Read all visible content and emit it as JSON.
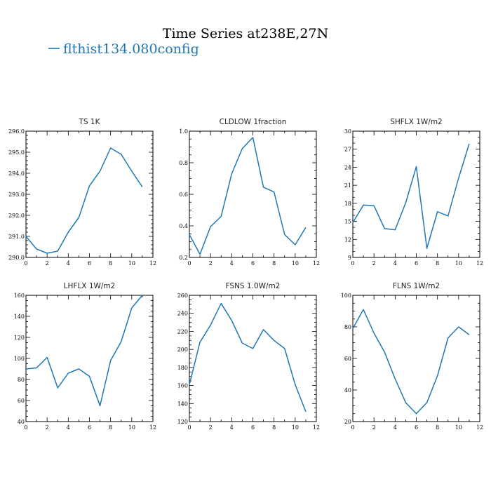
{
  "figure": {
    "title": "Time Series at238E,27N",
    "legend_label": "flthist134.080config",
    "series_color": "#1f77b4"
  },
  "chart_data": [
    {
      "type": "line",
      "title": "TS   1K",
      "x": [
        0,
        1,
        2,
        3,
        4,
        5,
        6,
        7,
        8,
        9,
        10,
        11
      ],
      "series": [
        {
          "values": [
            291.0,
            290.4,
            290.2,
            290.3,
            291.2,
            291.9,
            293.4,
            294.1,
            295.2,
            294.9,
            294.1,
            293.35
          ]
        }
      ],
      "xlim": [
        0,
        12
      ],
      "ylim": [
        290,
        296
      ],
      "xticks": [
        0,
        2,
        4,
        6,
        8,
        10,
        12
      ],
      "yticks": [
        290,
        291,
        292,
        293,
        294,
        295,
        296
      ],
      "ytick_labels": [
        "290.0",
        "291.0",
        "292.0",
        "293.0",
        "294.0",
        "295.0",
        "296.0"
      ],
      "yminor": 4
    },
    {
      "type": "line",
      "title": "CLDLOW   1fraction",
      "x": [
        0,
        1,
        2,
        3,
        4,
        5,
        6,
        7,
        8,
        9,
        10,
        11
      ],
      "series": [
        {
          "values": [
            0.345,
            0.22,
            0.395,
            0.46,
            0.73,
            0.89,
            0.96,
            0.645,
            0.615,
            0.345,
            0.28,
            0.39
          ]
        }
      ],
      "xlim": [
        0,
        12
      ],
      "ylim": [
        0.2,
        1.0
      ],
      "xticks": [
        0,
        2,
        4,
        6,
        8,
        10,
        12
      ],
      "yticks": [
        0.2,
        0.4,
        0.6,
        0.8,
        1.0
      ],
      "ytick_labels": [
        "0.2",
        "0.4",
        "0.6",
        "0.8",
        "1.0"
      ],
      "yminor": 3
    },
    {
      "type": "line",
      "title": "SHFLX   1W/m2",
      "x": [
        0,
        1,
        2,
        3,
        4,
        5,
        6,
        7,
        8,
        9,
        10,
        11
      ],
      "series": [
        {
          "values": [
            14.8,
            17.7,
            17.6,
            13.8,
            13.6,
            18.1,
            24.1,
            10.5,
            16.6,
            15.9,
            22.2,
            27.9
          ]
        }
      ],
      "xlim": [
        0,
        12
      ],
      "ylim": [
        9,
        30
      ],
      "xticks": [
        0,
        2,
        4,
        6,
        8,
        10,
        12
      ],
      "yticks": [
        9,
        12,
        15,
        18,
        21,
        24,
        27,
        30
      ],
      "ytick_labels": [
        "9",
        "12",
        "15",
        "18",
        "21",
        "24",
        "27",
        "30"
      ],
      "yminor": 2
    },
    {
      "type": "line",
      "title": "LHFLX   1W/m2",
      "x": [
        0,
        1,
        2,
        3,
        4,
        5,
        6,
        7,
        8,
        9,
        10,
        11
      ],
      "series": [
        {
          "values": [
            90,
            91,
            101,
            72,
            86,
            90,
            83,
            55,
            98,
            116,
            148,
            160
          ]
        }
      ],
      "xlim": [
        0,
        12
      ],
      "ylim": [
        40,
        160
      ],
      "xticks": [
        0,
        2,
        4,
        6,
        8,
        10,
        12
      ],
      "yticks": [
        40,
        60,
        80,
        100,
        120,
        140,
        160
      ],
      "ytick_labels": [
        "40",
        "60",
        "80",
        "100",
        "120",
        "140",
        "160"
      ],
      "yminor": 3
    },
    {
      "type": "line",
      "title": "FSNS   1.0W/m2",
      "x": [
        0,
        1,
        2,
        3,
        4,
        5,
        6,
        7,
        8,
        9,
        10,
        11
      ],
      "series": [
        {
          "values": [
            161,
            208,
            227,
            251,
            232,
            207,
            201,
            222,
            210,
            201,
            161,
            131
          ]
        }
      ],
      "xlim": [
        0,
        12
      ],
      "ylim": [
        120,
        260
      ],
      "xticks": [
        0,
        2,
        4,
        6,
        8,
        10,
        12
      ],
      "yticks": [
        120,
        140,
        160,
        180,
        200,
        220,
        240,
        260
      ],
      "ytick_labels": [
        "120",
        "140",
        "160",
        "180",
        "200",
        "220",
        "240",
        "260"
      ],
      "yminor": 3
    },
    {
      "type": "line",
      "title": "FLNS   1W/m2",
      "x": [
        0,
        1,
        2,
        3,
        4,
        5,
        6,
        7,
        8,
        9,
        10,
        11
      ],
      "series": [
        {
          "values": [
            79,
            91,
            76,
            64,
            47,
            32,
            25,
            32,
            49,
            73,
            80,
            75
          ]
        }
      ],
      "xlim": [
        0,
        12
      ],
      "ylim": [
        20,
        100
      ],
      "xticks": [
        0,
        2,
        4,
        6,
        8,
        10,
        12
      ],
      "yticks": [
        20,
        40,
        60,
        80,
        100
      ],
      "ytick_labels": [
        "20",
        "40",
        "60",
        "80",
        "100"
      ],
      "yminor": 3
    }
  ]
}
